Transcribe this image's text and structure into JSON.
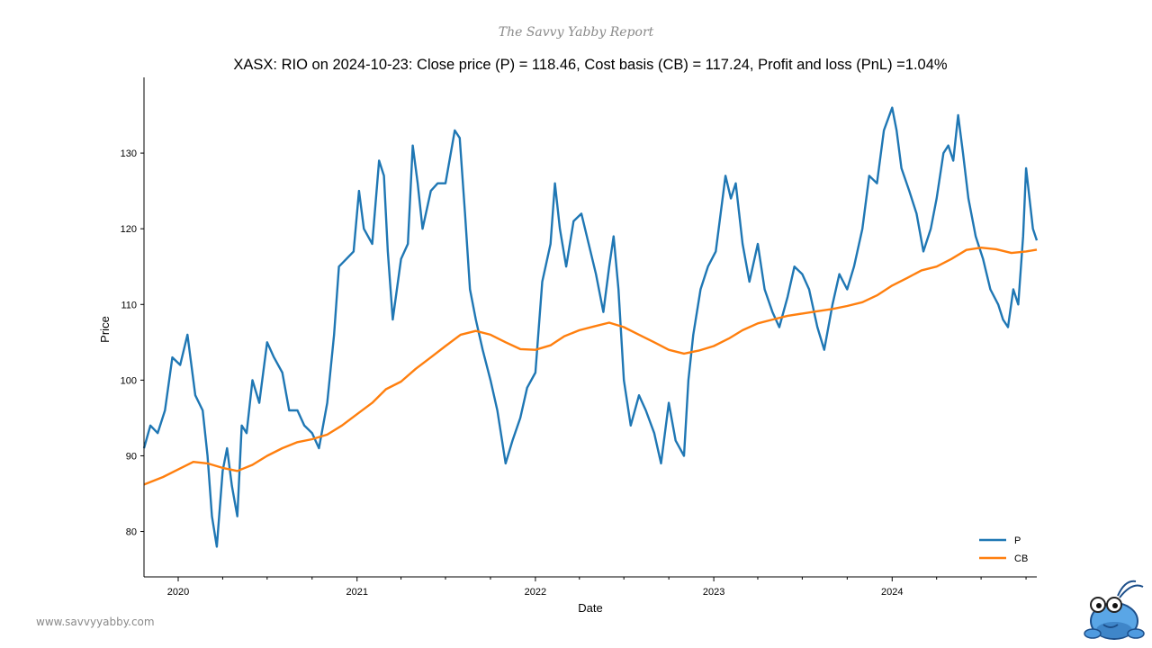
{
  "header": {
    "brand": "The Savvy Yabby Report"
  },
  "footer": {
    "url": "www.savvyyabby.com"
  },
  "colors": {
    "P": "#1f77b4",
    "CB": "#ff7f0e"
  },
  "chart_data": {
    "type": "line",
    "title": "XASX: RIO on 2024-10-23: Close price (P) = 118.46, Cost basis (CB) = 117.24, Profit and loss (PnL) =1.04%",
    "xlabel": "Date",
    "ylabel": "Price",
    "xlim": [
      "2019-10-23",
      "2024-10-23"
    ],
    "ylim": [
      74,
      140
    ],
    "x_ticks": [
      "2020",
      "2021",
      "2022",
      "2023",
      "2024"
    ],
    "y_ticks": [
      80,
      90,
      100,
      110,
      120,
      130
    ],
    "legend": {
      "placement": "bottom-right",
      "entries": [
        "P",
        "CB"
      ]
    },
    "grid": false,
    "series": [
      {
        "name": "P",
        "points": [
          [
            "2019-10-23",
            91
          ],
          [
            "2019-11-05",
            94
          ],
          [
            "2019-11-20",
            93
          ],
          [
            "2019-12-05",
            96
          ],
          [
            "2019-12-20",
            103
          ],
          [
            "2020-01-05",
            102
          ],
          [
            "2020-01-20",
            106
          ],
          [
            "2020-02-05",
            98
          ],
          [
            "2020-02-20",
            96
          ],
          [
            "2020-03-01",
            90
          ],
          [
            "2020-03-10",
            82
          ],
          [
            "2020-03-20",
            78
          ],
          [
            "2020-04-01",
            88
          ],
          [
            "2020-04-10",
            91
          ],
          [
            "2020-04-20",
            86
          ],
          [
            "2020-05-01",
            82
          ],
          [
            "2020-05-10",
            94
          ],
          [
            "2020-05-20",
            93
          ],
          [
            "2020-06-01",
            100
          ],
          [
            "2020-06-15",
            97
          ],
          [
            "2020-07-01",
            105
          ],
          [
            "2020-07-15",
            103
          ],
          [
            "2020-08-01",
            101
          ],
          [
            "2020-08-15",
            96
          ],
          [
            "2020-09-01",
            96
          ],
          [
            "2020-09-15",
            94
          ],
          [
            "2020-10-01",
            93
          ],
          [
            "2020-10-15",
            91
          ],
          [
            "2020-11-01",
            97
          ],
          [
            "2020-11-15",
            106
          ],
          [
            "2020-11-25",
            115
          ],
          [
            "2020-12-10",
            116
          ],
          [
            "2020-12-25",
            117
          ],
          [
            "2021-01-05",
            125
          ],
          [
            "2021-01-15",
            120
          ],
          [
            "2021-02-01",
            118
          ],
          [
            "2021-02-15",
            129
          ],
          [
            "2021-02-25",
            127
          ],
          [
            "2021-03-05",
            117
          ],
          [
            "2021-03-15",
            108
          ],
          [
            "2021-04-01",
            116
          ],
          [
            "2021-04-15",
            118
          ],
          [
            "2021-04-25",
            131
          ],
          [
            "2021-05-05",
            126
          ],
          [
            "2021-05-15",
            120
          ],
          [
            "2021-06-01",
            125
          ],
          [
            "2021-06-15",
            126
          ],
          [
            "2021-07-01",
            126
          ],
          [
            "2021-07-20",
            133
          ],
          [
            "2021-07-30",
            132
          ],
          [
            "2021-08-10",
            122
          ],
          [
            "2021-08-20",
            112
          ],
          [
            "2021-09-01",
            108
          ],
          [
            "2021-09-15",
            104
          ],
          [
            "2021-10-01",
            100
          ],
          [
            "2021-10-15",
            96
          ],
          [
            "2021-11-01",
            89
          ],
          [
            "2021-11-15",
            92
          ],
          [
            "2021-12-01",
            95
          ],
          [
            "2021-12-15",
            99
          ],
          [
            "2022-01-01",
            101
          ],
          [
            "2022-01-15",
            113
          ],
          [
            "2022-02-01",
            118
          ],
          [
            "2022-02-10",
            126
          ],
          [
            "2022-02-20",
            120
          ],
          [
            "2022-03-05",
            115
          ],
          [
            "2022-03-20",
            121
          ],
          [
            "2022-04-05",
            122
          ],
          [
            "2022-04-20",
            118
          ],
          [
            "2022-05-05",
            114
          ],
          [
            "2022-05-20",
            109
          ],
          [
            "2022-06-01",
            115
          ],
          [
            "2022-06-10",
            119
          ],
          [
            "2022-06-20",
            112
          ],
          [
            "2022-07-01",
            100
          ],
          [
            "2022-07-15",
            94
          ],
          [
            "2022-08-01",
            98
          ],
          [
            "2022-08-15",
            96
          ],
          [
            "2022-09-01",
            93
          ],
          [
            "2022-09-15",
            89
          ],
          [
            "2022-10-01",
            97
          ],
          [
            "2022-10-15",
            92
          ],
          [
            "2022-11-01",
            90
          ],
          [
            "2022-11-10",
            100
          ],
          [
            "2022-11-20",
            106
          ],
          [
            "2022-12-05",
            112
          ],
          [
            "2022-12-20",
            115
          ],
          [
            "2023-01-05",
            117
          ],
          [
            "2023-01-15",
            122
          ],
          [
            "2023-01-25",
            127
          ],
          [
            "2023-02-05",
            124
          ],
          [
            "2023-02-15",
            126
          ],
          [
            "2023-03-01",
            118
          ],
          [
            "2023-03-15",
            113
          ],
          [
            "2023-04-01",
            118
          ],
          [
            "2023-04-15",
            112
          ],
          [
            "2023-05-01",
            109
          ],
          [
            "2023-05-15",
            107
          ],
          [
            "2023-06-01",
            111
          ],
          [
            "2023-06-15",
            115
          ],
          [
            "2023-07-01",
            114
          ],
          [
            "2023-07-15",
            112
          ],
          [
            "2023-08-01",
            107
          ],
          [
            "2023-08-15",
            104
          ],
          [
            "2023-09-01",
            110
          ],
          [
            "2023-09-15",
            114
          ],
          [
            "2023-10-01",
            112
          ],
          [
            "2023-10-15",
            115
          ],
          [
            "2023-11-01",
            120
          ],
          [
            "2023-11-15",
            127
          ],
          [
            "2023-12-01",
            126
          ],
          [
            "2023-12-15",
            133
          ],
          [
            "2024-01-01",
            136
          ],
          [
            "2024-01-10",
            133
          ],
          [
            "2024-01-20",
            128
          ],
          [
            "2024-02-05",
            125
          ],
          [
            "2024-02-20",
            122
          ],
          [
            "2024-03-05",
            117
          ],
          [
            "2024-03-20",
            120
          ],
          [
            "2024-04-01",
            124
          ],
          [
            "2024-04-15",
            130
          ],
          [
            "2024-04-25",
            131
          ],
          [
            "2024-05-05",
            129
          ],
          [
            "2024-05-15",
            135
          ],
          [
            "2024-05-25",
            130
          ],
          [
            "2024-06-05",
            124
          ],
          [
            "2024-06-20",
            119
          ],
          [
            "2024-07-05",
            116
          ],
          [
            "2024-07-20",
            112
          ],
          [
            "2024-08-05",
            110
          ],
          [
            "2024-08-15",
            108
          ],
          [
            "2024-08-25",
            107
          ],
          [
            "2024-09-05",
            112
          ],
          [
            "2024-09-15",
            110
          ],
          [
            "2024-09-25",
            119
          ],
          [
            "2024-10-01",
            128
          ],
          [
            "2024-10-08",
            124
          ],
          [
            "2024-10-15",
            120
          ],
          [
            "2024-10-23",
            118.46
          ]
        ]
      },
      {
        "name": "CB",
        "points": [
          [
            "2019-10-23",
            86.2
          ],
          [
            "2019-12-01",
            87.2
          ],
          [
            "2020-01-01",
            88.2
          ],
          [
            "2020-02-01",
            89.2
          ],
          [
            "2020-03-01",
            89.0
          ],
          [
            "2020-04-01",
            88.4
          ],
          [
            "2020-05-01",
            88.0
          ],
          [
            "2020-06-01",
            88.8
          ],
          [
            "2020-07-01",
            90.0
          ],
          [
            "2020-08-01",
            91.0
          ],
          [
            "2020-09-01",
            91.8
          ],
          [
            "2020-10-01",
            92.2
          ],
          [
            "2020-11-01",
            92.8
          ],
          [
            "2020-12-01",
            94.0
          ],
          [
            "2021-01-01",
            95.5
          ],
          [
            "2021-02-01",
            97.0
          ],
          [
            "2021-03-01",
            98.8
          ],
          [
            "2021-04-01",
            99.8
          ],
          [
            "2021-05-01",
            101.5
          ],
          [
            "2021-06-01",
            103.0
          ],
          [
            "2021-07-01",
            104.5
          ],
          [
            "2021-08-01",
            106.0
          ],
          [
            "2021-09-01",
            106.5
          ],
          [
            "2021-10-01",
            106.0
          ],
          [
            "2021-11-01",
            105.0
          ],
          [
            "2021-12-01",
            104.1
          ],
          [
            "2022-01-01",
            104.0
          ],
          [
            "2022-02-01",
            104.6
          ],
          [
            "2022-03-01",
            105.8
          ],
          [
            "2022-04-01",
            106.6
          ],
          [
            "2022-05-01",
            107.1
          ],
          [
            "2022-06-01",
            107.6
          ],
          [
            "2022-07-01",
            107.0
          ],
          [
            "2022-08-01",
            106.0
          ],
          [
            "2022-09-01",
            105.0
          ],
          [
            "2022-10-01",
            104.0
          ],
          [
            "2022-11-01",
            103.5
          ],
          [
            "2022-12-01",
            103.9
          ],
          [
            "2023-01-01",
            104.5
          ],
          [
            "2023-02-01",
            105.5
          ],
          [
            "2023-03-01",
            106.6
          ],
          [
            "2023-04-01",
            107.5
          ],
          [
            "2023-05-01",
            108.0
          ],
          [
            "2023-06-01",
            108.5
          ],
          [
            "2023-07-01",
            108.8
          ],
          [
            "2023-08-01",
            109.1
          ],
          [
            "2023-09-01",
            109.4
          ],
          [
            "2023-10-01",
            109.8
          ],
          [
            "2023-11-01",
            110.3
          ],
          [
            "2023-12-01",
            111.2
          ],
          [
            "2024-01-01",
            112.5
          ],
          [
            "2024-02-01",
            113.5
          ],
          [
            "2024-03-01",
            114.5
          ],
          [
            "2024-04-01",
            115.0
          ],
          [
            "2024-05-01",
            116.0
          ],
          [
            "2024-06-01",
            117.2
          ],
          [
            "2024-07-01",
            117.5
          ],
          [
            "2024-08-01",
            117.3
          ],
          [
            "2024-09-01",
            116.8
          ],
          [
            "2024-10-01",
            117.0
          ],
          [
            "2024-10-23",
            117.24
          ]
        ]
      }
    ]
  }
}
